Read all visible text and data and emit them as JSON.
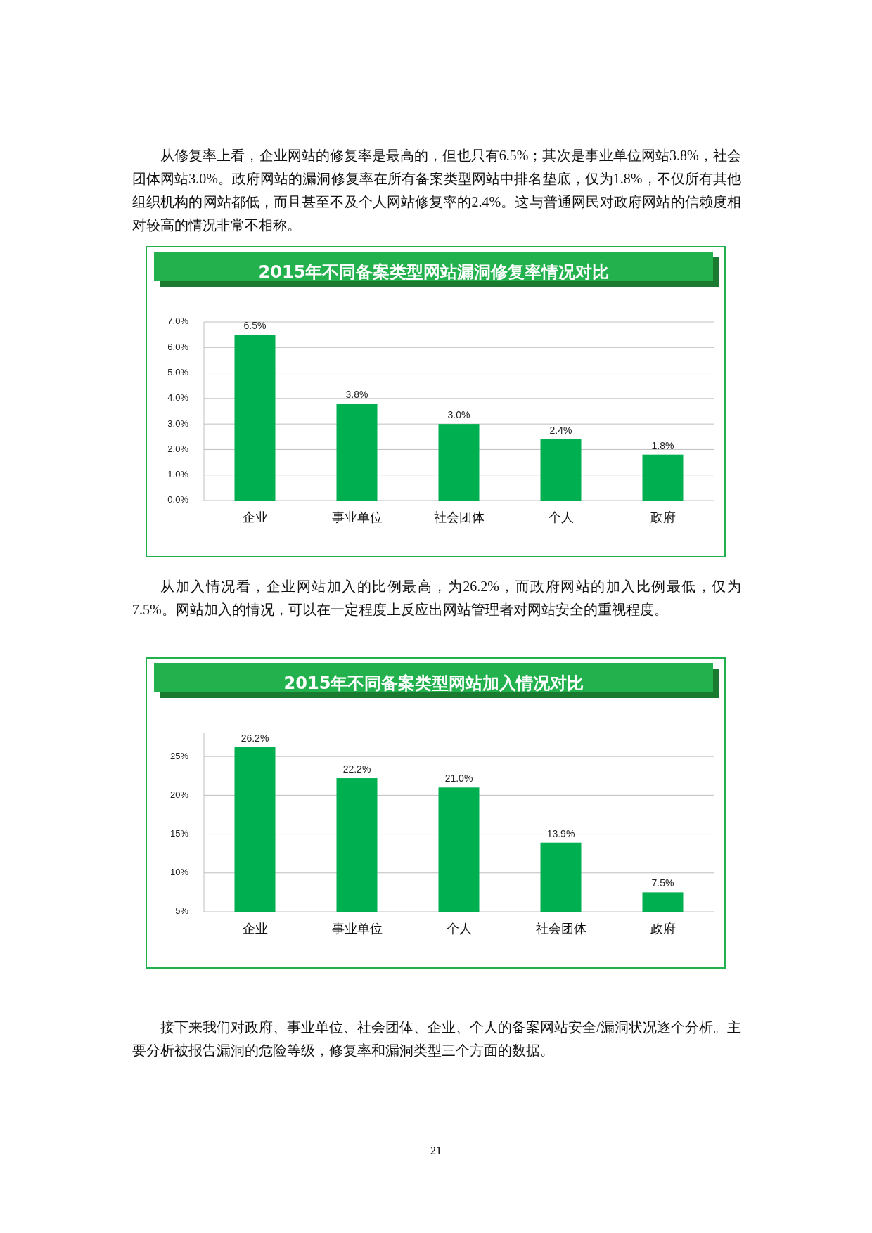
{
  "chart_data": [
    {
      "type": "bar",
      "title": "2015年不同备案类型网站漏洞修复率情况对比",
      "categories": [
        "企业",
        "事业单位",
        "社会团体",
        "个人",
        "政府"
      ],
      "values": [
        6.5,
        3.8,
        3.0,
        2.4,
        1.8
      ],
      "value_labels": [
        "6.5%",
        "3.8%",
        "3.0%",
        "2.4%",
        "1.8%"
      ],
      "color": "#00b050",
      "ylim": [
        0,
        7
      ],
      "yticks": [
        {
          "value": 0,
          "label": "0.0%"
        },
        {
          "value": 1,
          "label": "1.0%"
        },
        {
          "value": 2,
          "label": "2.0%"
        },
        {
          "value": 3,
          "label": "3.0%"
        },
        {
          "value": 4,
          "label": "4.0%"
        },
        {
          "value": 5,
          "label": "5.0%"
        },
        {
          "value": 6,
          "label": "6.0%"
        },
        {
          "value": 7,
          "label": "7.0%"
        }
      ],
      "grid": "y",
      "annotations": [
        "从修复率上看，企业网站的修复率是最高的，但也只有6.5%；其次是事业单位网站3.8%，社会团体网站3.0%。政府网站的漏洞修复率在所有备案类型网站中排名垫底，仅为1.8%，不仅所有其他组织机构的网站都低，而且甚至不及个人网站修复率的2.4%。这与普通网民对政府网站的信赖度相对较高的情况非常不相称。"
      ]
    },
    {
      "type": "bar",
      "title": "2015年不同备案类型网站加入情况对比",
      "categories": [
        "企业",
        "事业单位",
        "个人",
        "社会团体",
        "政府"
      ],
      "values": [
        26.2,
        22.2,
        21.0,
        13.9,
        7.5
      ],
      "value_labels": [
        "26.2%",
        "22.2%",
        "21.0%",
        "13.9%",
        "7.5%"
      ],
      "color": "#00b050",
      "ylim": [
        5,
        28
      ],
      "yticks": [
        {
          "value": 5,
          "label": "5%"
        },
        {
          "value": 10,
          "label": "10%"
        },
        {
          "value": 15,
          "label": "15%"
        },
        {
          "value": 20,
          "label": "20%"
        },
        {
          "value": 25,
          "label": "25%"
        }
      ],
      "grid": "y",
      "annotations": [
        "从加入情况看，企业网站加入的比例最高，为26.2%，而政府网站的加入比例最低，仅为7.5%。网站加入的情况，可以在一定程度上反应出网站管理者对网站安全的重视程度。",
        "接下来我们对政府、事业单位、社会团体、企业、个人的备案网站安全/漏洞状况逐个分析。主要分析被报告漏洞的危险等级，修复率和漏洞类型三个方面的数据。",
        "21"
      ]
    }
  ]
}
